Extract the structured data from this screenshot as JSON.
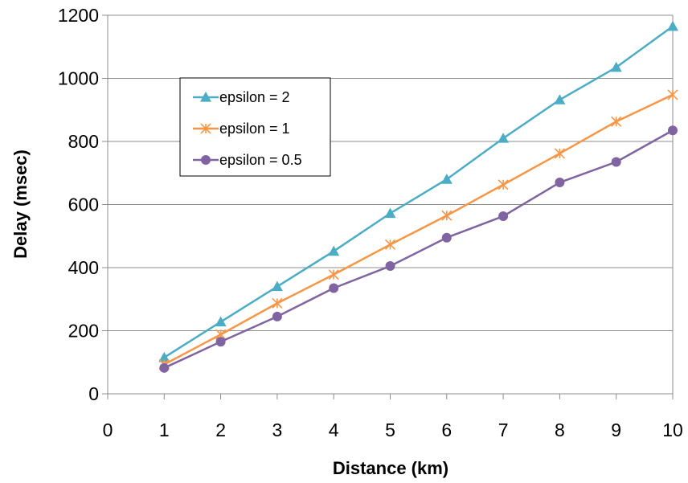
{
  "chart_data": {
    "type": "line",
    "title": "",
    "xlabel": "Distance (km)",
    "ylabel": "Delay (msec)",
    "xlim": [
      0,
      10
    ],
    "ylim": [
      0,
      1200
    ],
    "xticks": [
      0,
      1,
      2,
      3,
      4,
      5,
      6,
      7,
      8,
      9,
      10
    ],
    "yticks": [
      0,
      200,
      400,
      600,
      800,
      1000,
      1200
    ],
    "grid": "horizontal",
    "legend_position": "top-left inside",
    "x": [
      1,
      2,
      3,
      4,
      5,
      6,
      7,
      8,
      9,
      10
    ],
    "series": [
      {
        "name": "epsilon = 2",
        "color": "#4BACC6",
        "marker": "triangle",
        "values": [
          115,
          228,
          340,
          452,
          572,
          680,
          810,
          932,
          1035,
          1165
        ]
      },
      {
        "name": "epsilon = 1",
        "color": "#F79646",
        "marker": "star",
        "values": [
          93,
          188,
          287,
          378,
          473,
          565,
          663,
          762,
          863,
          948
        ]
      },
      {
        "name": "epsilon = 0.5",
        "color": "#8064A2",
        "marker": "circle",
        "values": [
          82,
          165,
          245,
          335,
          405,
          495,
          563,
          670,
          735,
          835
        ]
      }
    ]
  }
}
